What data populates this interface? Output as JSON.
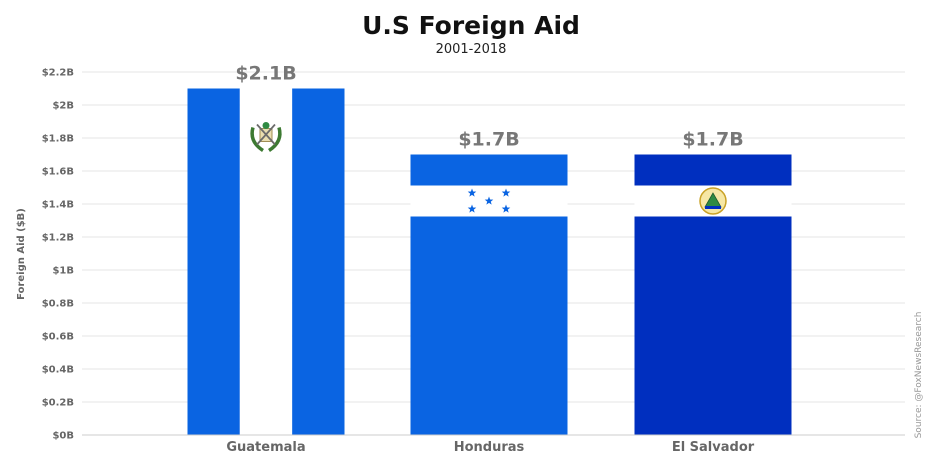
{
  "chart_data": {
    "type": "bar",
    "title": "U.S Foreign Aid",
    "subtitle": "2001-2018",
    "ylabel": "Foreign Aid ($B)",
    "xlabel": "",
    "ylim": [
      0,
      2.2
    ],
    "yticks": [
      0,
      0.2,
      0.4,
      0.6,
      0.8,
      1.0,
      1.2,
      1.4,
      1.6,
      1.8,
      2.0,
      2.2
    ],
    "ytick_labels": [
      "$0B",
      "$0.2B",
      "$0.4B",
      "$0.6B",
      "$0.8B",
      "$1B",
      "$1.2B",
      "$1.4B",
      "$1.6B",
      "$1.8B",
      "$2B",
      "$2.2B"
    ],
    "categories": [
      "Guatemala",
      "Honduras",
      "El Salvador"
    ],
    "values": [
      2.1,
      1.7,
      1.7
    ],
    "data_labels": [
      "$2.1B",
      "$1.7B",
      "$1.7B"
    ],
    "grid": true,
    "bar_style": [
      "flag-guatemala",
      "flag-honduras",
      "flag-el-salvador"
    ],
    "colors": {
      "guatemala_blue": "#0a64e2",
      "honduras_blue": "#0a64e2",
      "el_salvador_blue": "#002fbf",
      "white": "#ffffff"
    }
  },
  "source": "Source: @FoxNewsResearch"
}
